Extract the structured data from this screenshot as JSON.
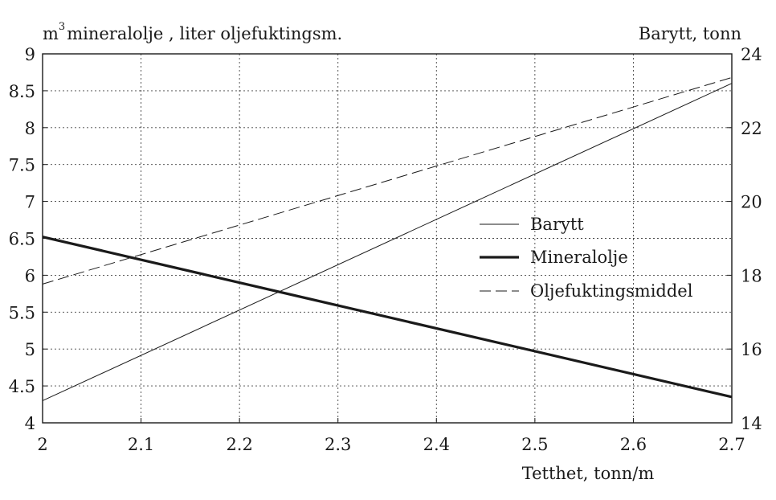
{
  "chart_data": {
    "type": "line",
    "x": [
      2.0,
      2.7
    ],
    "xlim": [
      2.0,
      2.7
    ],
    "xticks": [
      "2",
      "2.1",
      "2.2",
      "2.3",
      "2.4",
      "2.5",
      "2.6",
      "2.7"
    ],
    "xlabel": "Tetthet, tonn/m",
    "ylabel_left": "mineralolje , liter oljefuktingsm.",
    "ylabel_left_prefix": "m",
    "ylabel_left_sup": "3",
    "ylim_left": [
      4,
      9
    ],
    "yticks_left": [
      "4",
      "4.5",
      "5",
      "5.5",
      "6",
      "6.5",
      "7",
      "7.5",
      "8",
      "8.5",
      "9"
    ],
    "ylabel_right": "Barytt, tonn",
    "ylim_right": [
      14,
      24
    ],
    "yticks_right": [
      "14",
      "16",
      "18",
      "20",
      "22",
      "24"
    ],
    "grid": true,
    "legend_position": "center-right",
    "series": [
      {
        "name": "Barytt",
        "axis": "right",
        "x": [
          2.0,
          2.7
        ],
        "values": [
          14.6,
          23.2
        ],
        "style": "thin"
      },
      {
        "name": "Mineralolje",
        "axis": "left",
        "x": [
          2.0,
          2.7
        ],
        "values": [
          6.52,
          4.35
        ],
        "style": "thick"
      },
      {
        "name": "Oljefuktingsmiddel",
        "axis": "left",
        "x": [
          2.0,
          2.7
        ],
        "values": [
          5.88,
          8.68
        ],
        "style": "dashed"
      }
    ],
    "colors": {
      "line": "#1a1a1a",
      "grid": "#444444",
      "background": "#ffffff"
    }
  }
}
